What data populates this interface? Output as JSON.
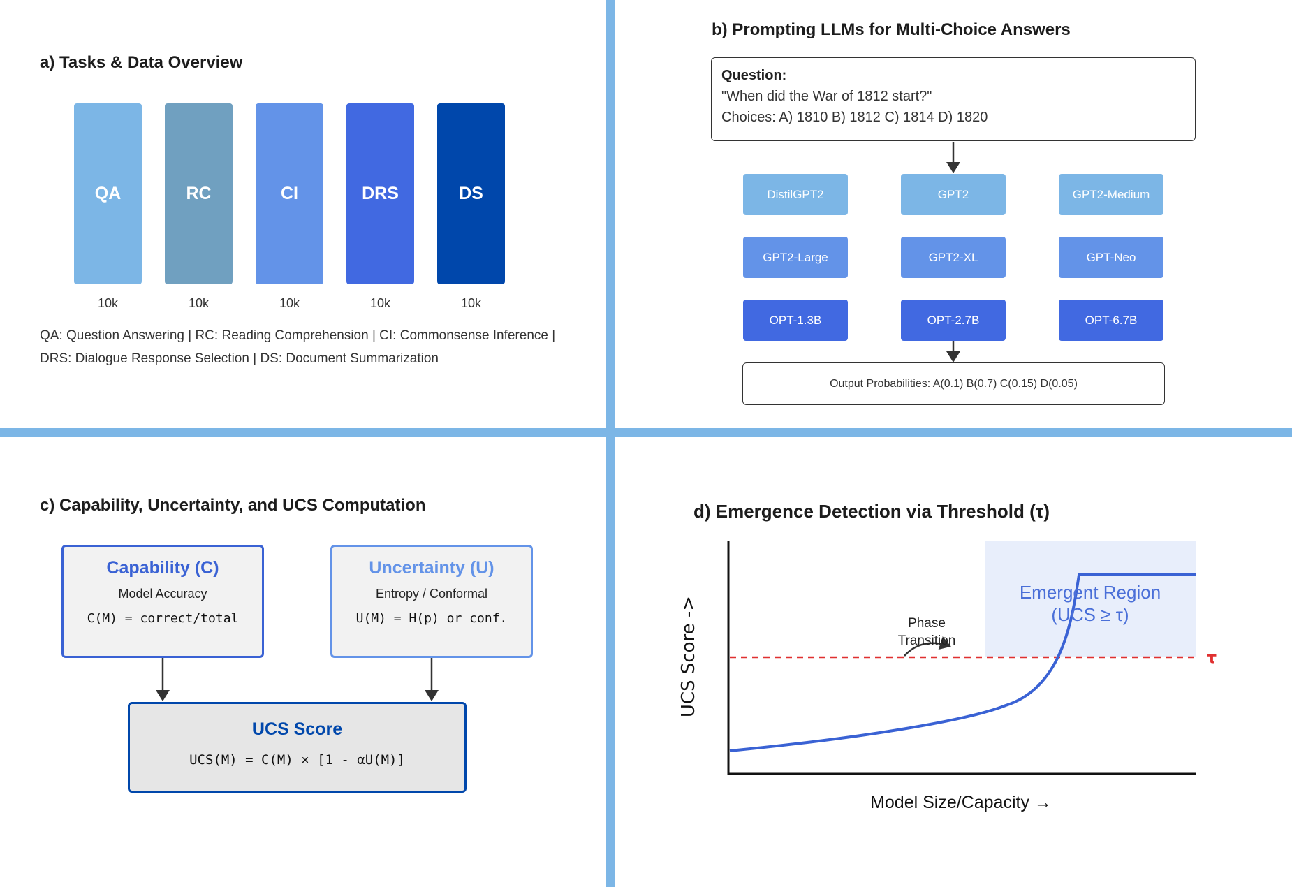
{
  "panel_a": {
    "title": "a) Tasks & Data Overview",
    "tasks": [
      {
        "label": "QA",
        "count": "10k",
        "color": "#7cb6e6"
      },
      {
        "label": "RC",
        "count": "10k",
        "color": "#70a0c0"
      },
      {
        "label": "CI",
        "count": "10k",
        "color": "#6393e8"
      },
      {
        "label": "DRS",
        "count": "10k",
        "color": "#4169e1"
      },
      {
        "label": "DS",
        "count": "10k",
        "color": "#0047ab"
      }
    ],
    "legend_line1": "QA: Question Answering | RC: Reading Comprehension | CI: Commonsense Inference |",
    "legend_line2": "DRS: Dialogue Response Selection | DS: Document Summarization"
  },
  "panel_b": {
    "title": "b) Prompting LLMs for Multi-Choice Answers",
    "question_label": "Question:",
    "question_text": "\"When did the War of 1812 start?\"",
    "choices_text": "Choices: A) 1810 B) 1812 C) 1814 D) 1820",
    "models": [
      {
        "label": "DistilGPT2",
        "color": "#7cb6e6"
      },
      {
        "label": "GPT2",
        "color": "#7cb6e6"
      },
      {
        "label": "GPT2-Medium",
        "color": "#7cb6e6"
      },
      {
        "label": "GPT2-Large",
        "color": "#6393e8"
      },
      {
        "label": "GPT2-XL",
        "color": "#6393e8"
      },
      {
        "label": "GPT-Neo",
        "color": "#6393e8"
      },
      {
        "label": "OPT-1.3B",
        "color": "#4169e1"
      },
      {
        "label": "OPT-2.7B",
        "color": "#4169e1"
      },
      {
        "label": "OPT-6.7B",
        "color": "#4169e1"
      }
    ],
    "output_text": "Output Probabilities: A(0.1) B(0.7) C(0.15) D(0.05)"
  },
  "panel_c": {
    "title": "c) Capability, Uncertainty, and UCS Computation",
    "capability": {
      "title": "Capability (C)",
      "subtitle": "Model Accuracy",
      "formula": "C(M) = correct/total",
      "color": "#3a62d4"
    },
    "uncertainty": {
      "title": "Uncertainty (U)",
      "subtitle": "Entropy / Conformal",
      "formula": "U(M) = H(p) or conf.",
      "color": "#6393e8"
    },
    "ucs": {
      "title": "UCS Score",
      "formula": "UCS(M) = C(M) × [1 - αU(M)]",
      "color": "#0047ab"
    }
  },
  "panel_d": {
    "title": "d) Emergence Detection via Threshold (τ)",
    "ylabel": "UCS Score ->",
    "xlabel": "Model Size/Capacity →",
    "threshold_label": "τ",
    "region_label_line1": "Emergent Region",
    "region_label_line2": "(UCS ≥ τ)",
    "phase_label_line1": "Phase",
    "phase_label_line2": "Transition",
    "curve_color": "#3a62d4",
    "threshold_color": "#e03030",
    "region_color": "#e8eefb"
  }
}
